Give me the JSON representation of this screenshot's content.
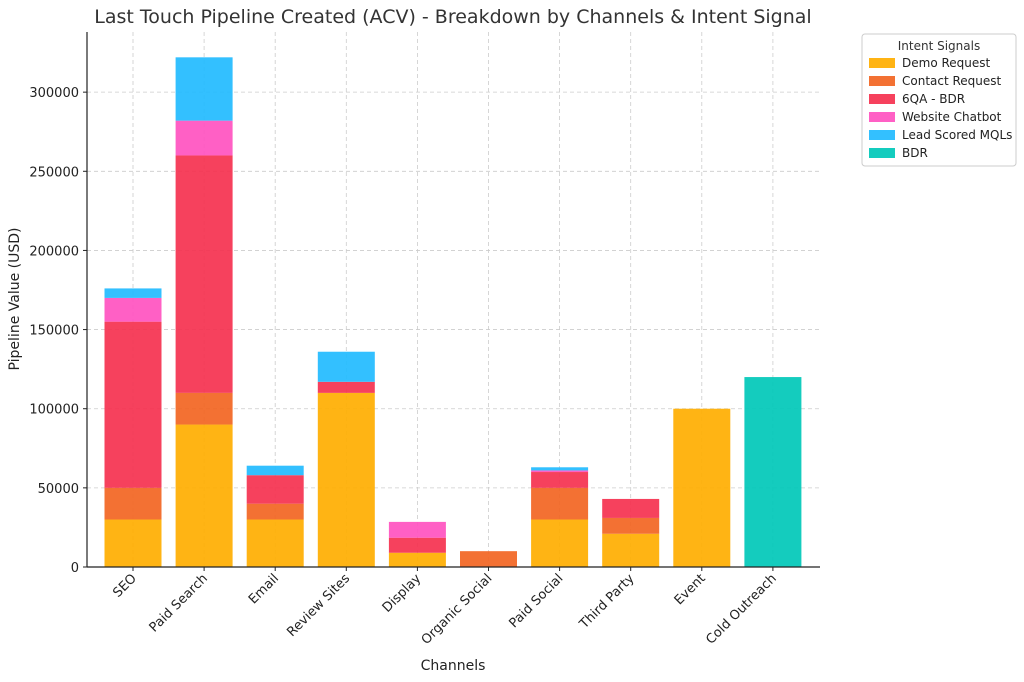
{
  "chart_data": {
    "type": "bar",
    "stacked": true,
    "title": "Last Touch Pipeline Created (ACV) - Breakdown by Channels & Intent Signal",
    "xlabel": "Channels",
    "ylabel": "Pipeline Value (USD)",
    "ylim": [
      0,
      338000
    ],
    "yticks": [
      0,
      50000,
      100000,
      150000,
      200000,
      250000,
      300000
    ],
    "grid": true,
    "legend_title": "Intent Signals",
    "legend_position": "outside-top-right",
    "categories": [
      "SEO",
      "Paid Search",
      "Email",
      "Review Sites",
      "Display",
      "Organic Social",
      "Paid Social",
      "Third Party",
      "Event",
      "Cold Outreach"
    ],
    "series": [
      {
        "name": "Demo Request",
        "color": "#FFAE00",
        "values": [
          30000,
          90000,
          30000,
          110000,
          9000,
          0,
          30000,
          21000,
          100000,
          0
        ]
      },
      {
        "name": "Contact Request",
        "color": "#F26522",
        "values": [
          20000,
          20000,
          10000,
          0,
          0,
          10000,
          20000,
          10000,
          0,
          0
        ]
      },
      {
        "name": "6QA - BDR",
        "color": "#F5314F",
        "values": [
          105000,
          150000,
          18000,
          7000,
          9500,
          0,
          10000,
          12000,
          0,
          0
        ]
      },
      {
        "name": "Website Chatbot",
        "color": "#FF52C0",
        "values": [
          15000,
          22000,
          0,
          0,
          10000,
          0,
          1000,
          0,
          0,
          0
        ]
      },
      {
        "name": "Lead Scored MQLs",
        "color": "#22BBFF",
        "values": [
          6000,
          40000,
          6000,
          19000,
          0,
          0,
          2000,
          0,
          0,
          0
        ]
      },
      {
        "name": "BDR",
        "color": "#00C8B8",
        "values": [
          0,
          0,
          0,
          0,
          0,
          0,
          0,
          0,
          0,
          120000
        ]
      }
    ]
  }
}
